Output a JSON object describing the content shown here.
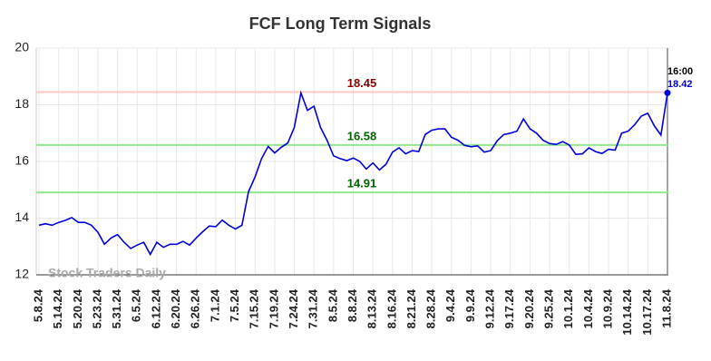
{
  "chart_data": {
    "type": "line",
    "title": "FCF Long Term Signals",
    "watermark": "Stock Traders Daily",
    "categories": [
      "5.8.24",
      null,
      null,
      "5.14.24",
      null,
      null,
      "5.20.24",
      null,
      null,
      "5.23.24",
      null,
      null,
      "5.31.24",
      null,
      null,
      "6.5.24",
      null,
      null,
      "6.12.24",
      null,
      null,
      "6.20.24",
      null,
      null,
      "6.26.24",
      null,
      null,
      "7.1.24",
      null,
      null,
      "7.5.24",
      null,
      null,
      "7.15.24",
      null,
      null,
      "7.19.24",
      null,
      null,
      "7.24.24",
      null,
      null,
      "7.31.24",
      null,
      null,
      "8.5.24",
      null,
      null,
      "8.8.24",
      null,
      null,
      "8.13.24",
      null,
      null,
      "8.16.24",
      null,
      null,
      "8.21.24",
      null,
      null,
      "8.28.24",
      null,
      null,
      "9.4.24",
      null,
      null,
      "9.9.24",
      null,
      null,
      "9.12.24",
      null,
      null,
      "9.17.24",
      null,
      null,
      "9.20.24",
      null,
      null,
      "9.25.24",
      null,
      null,
      "10.1.24",
      null,
      null,
      "10.4.24",
      null,
      null,
      "10.9.24",
      null,
      null,
      "10.14.24",
      null,
      null,
      "10.17.24",
      null,
      null,
      "11.8.24"
    ],
    "values": [
      13.75,
      13.8,
      13.75,
      13.85,
      13.92,
      14.02,
      13.85,
      13.85,
      13.75,
      13.5,
      13.08,
      13.3,
      13.42,
      13.15,
      12.93,
      13.05,
      13.15,
      12.72,
      13.15,
      12.97,
      13.08,
      13.08,
      13.18,
      13.05,
      13.3,
      13.52,
      13.72,
      13.7,
      13.93,
      13.75,
      13.62,
      13.75,
      14.93,
      15.45,
      16.1,
      16.53,
      16.3,
      16.5,
      16.65,
      17.2,
      18.42,
      17.8,
      17.95,
      17.2,
      16.75,
      16.2,
      16.1,
      16.03,
      16.12,
      16.0,
      15.73,
      15.95,
      15.7,
      15.9,
      16.33,
      16.48,
      16.27,
      16.38,
      16.35,
      16.95,
      17.1,
      17.15,
      17.15,
      16.85,
      16.75,
      16.57,
      16.52,
      16.55,
      16.33,
      16.38,
      16.73,
      16.95,
      17.0,
      17.07,
      17.5,
      17.15,
      17.0,
      16.75,
      16.63,
      16.6,
      16.7,
      16.58,
      16.25,
      16.27,
      16.48,
      16.35,
      16.28,
      16.43,
      16.4,
      17.0,
      17.07,
      17.3,
      17.6,
      17.7,
      17.25,
      16.93,
      18.42
    ],
    "color": "#0000dd",
    "ylim": [
      12,
      20
    ],
    "yticks": [
      12,
      14,
      16,
      18,
      20
    ],
    "grid": true,
    "hlines": [
      {
        "value": 18.45,
        "color": "#ffc8c8",
        "label_color": "#8b0000"
      },
      {
        "value": 16.58,
        "color": "#90e890",
        "label_color": "#006400"
      },
      {
        "value": 14.91,
        "color": "#90e890",
        "label_color": "#006400"
      }
    ],
    "last_time": "16:00"
  }
}
